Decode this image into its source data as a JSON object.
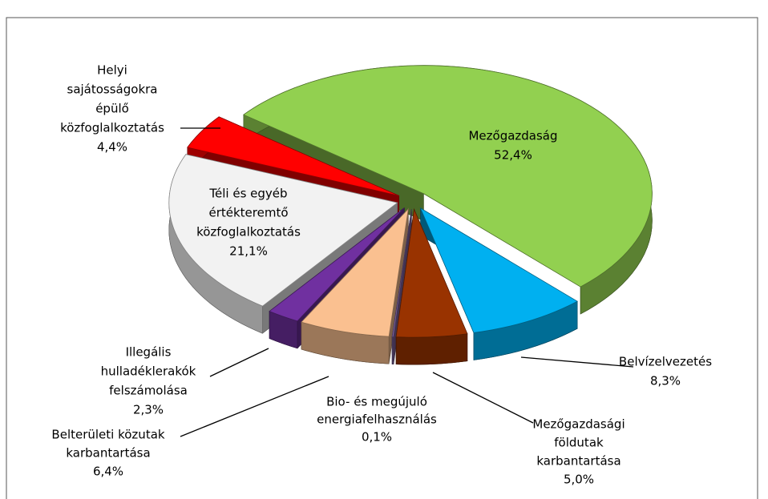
{
  "chart_data": {
    "type": "pie3d",
    "categories": [
      [
        "Mezőgazdaság"
      ],
      [
        "Belvízelvezetés"
      ],
      [
        "Mezőgazdasági",
        "földutak",
        "karbantartása"
      ],
      [
        "Bio- és megújuló",
        "energiafelhasználás"
      ],
      [
        "Belterületi közutak",
        "karbantartása"
      ],
      [
        "Illegális",
        "hulladéklerakók",
        "felszámolása"
      ],
      [
        "Téli és egyéb",
        "értékteremtő",
        "közfoglalkoztatás"
      ],
      [
        "Helyi",
        "sajátosságokra",
        "épülő",
        "közfoglalkoztatás"
      ]
    ],
    "values": [
      52.4,
      8.3,
      5.0,
      0.1,
      6.4,
      2.3,
      21.1,
      4.4
    ],
    "value_labels": [
      "52,4%",
      "8,3%",
      "5,0%",
      "0,1%",
      "6,4%",
      "2,3%",
      "21,1%",
      "4,4%"
    ],
    "colors": [
      "#92d050",
      "#00b0f0",
      "#993300",
      "#8064a2",
      "#fac090",
      "#7030a0",
      "#f2f2f2",
      "#ff0000"
    ]
  }
}
